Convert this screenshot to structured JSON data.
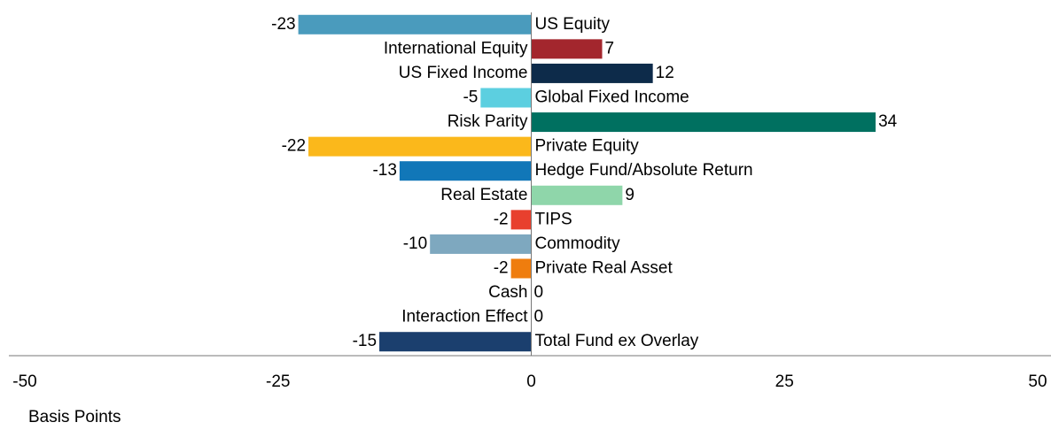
{
  "chart_data": {
    "type": "barh",
    "categories": [
      "US Equity",
      "International Equity",
      "US Fixed Income",
      "Global Fixed Income",
      "Risk Parity",
      "Private Equity",
      "Hedge Fund/Absolute Return",
      "Real Estate",
      "TIPS",
      "Commodity",
      "Private Real Asset",
      "Cash",
      "Interaction Effect",
      "Total Fund ex Overlay"
    ],
    "values": [
      -23,
      7,
      12,
      -5,
      34,
      -22,
      -13,
      9,
      -2,
      -10,
      -2,
      0,
      0,
      -15
    ],
    "colors": [
      "#4a9bbd",
      "#a3262d",
      "#0d2b4a",
      "#5ccfe0",
      "#007060",
      "#fbb81b",
      "#1177b8",
      "#8fd6aa",
      "#e8402e",
      "#7ea8bf",
      "#ef7d0e",
      "#888888",
      "#888888",
      "#1b3f6e"
    ],
    "xlim": [
      -50,
      50
    ],
    "xticks": [
      -50,
      -25,
      0,
      25,
      50
    ],
    "x_label": "Basis Points",
    "grid": false
  }
}
